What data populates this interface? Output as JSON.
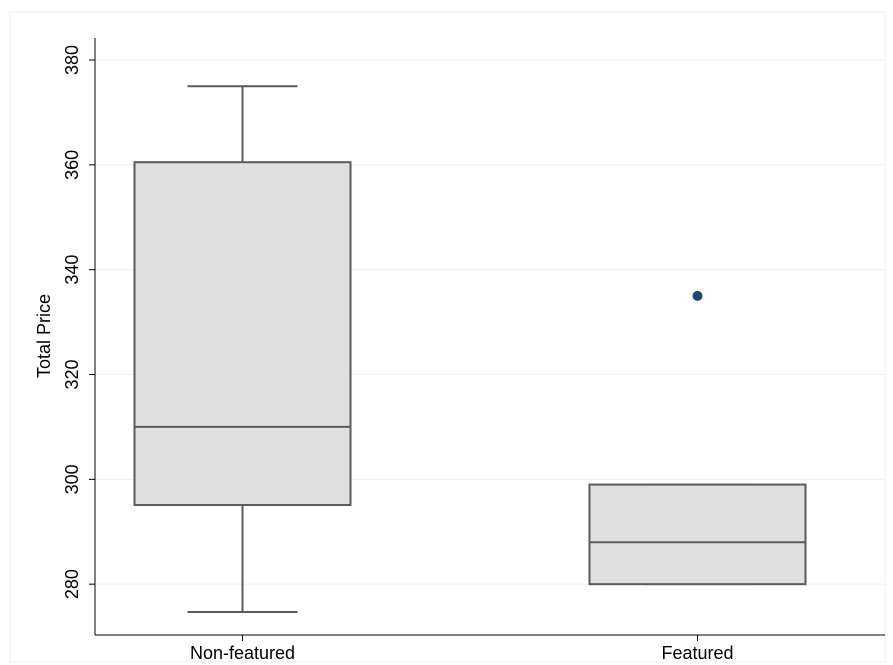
{
  "chart_data": {
    "type": "box",
    "y_label": "Total Price",
    "categories": [
      "Non-featured",
      "Featured"
    ],
    "boxes": [
      {
        "whisker_low": 274.7,
        "q1": 295.1,
        "median": 310,
        "q3": 360.5,
        "whisker_high": 375,
        "outliers": []
      },
      {
        "whisker_low": 280,
        "q1": 280,
        "median": 288,
        "q3": 299,
        "whisker_high": 299,
        "outliers": [
          335
        ]
      }
    ],
    "box_color": "#e0e0e0",
    "line_color": "#5a5a5a",
    "outlier_color": "#1a476f",
    "ylim": [
      270.3,
      384.2
    ],
    "yticks": [
      280,
      300,
      320,
      340,
      360,
      380
    ],
    "grid": true
  }
}
